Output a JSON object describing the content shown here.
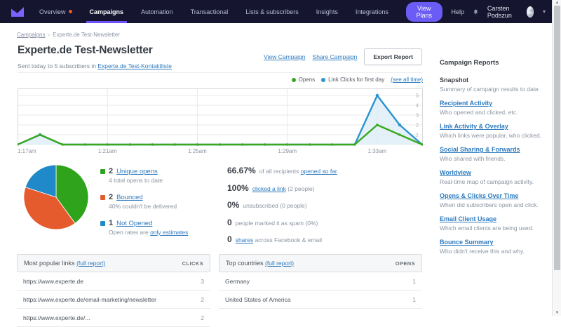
{
  "nav": {
    "items": [
      {
        "label": "Overview",
        "badge": true
      },
      {
        "label": "Campaigns",
        "active": true
      },
      {
        "label": "Automation"
      },
      {
        "label": "Transactional"
      },
      {
        "label": "Lists & subscribers"
      },
      {
        "label": "Insights"
      },
      {
        "label": "Integrations"
      }
    ],
    "view_plans": "View Plans",
    "help": "Help",
    "user": "Carsten Podszun"
  },
  "breadcrumb": {
    "parent": "Campaigns",
    "separator": "›",
    "current": "Experte.de Test-Newsletter"
  },
  "header": {
    "title": "Experte.de Test-Newsletter",
    "subtitle_prefix": "Sent today to 5 subscribers in ",
    "subtitle_link": "Experte.de Test-Kontaktliste",
    "view_campaign": "View Campaign",
    "share_campaign": "Share Campaign",
    "export_report": "Export Report"
  },
  "legend": {
    "opens": "Opens",
    "clicks": "Link Clicks for first day",
    "see_all": "(see all time)"
  },
  "chart_data": {
    "type": "line",
    "title": "Opens and link clicks for first day",
    "x_ticks": [
      "1:17am",
      "1:21am",
      "1:25am",
      "1:29am",
      "1:33am"
    ],
    "x_tick_index": [
      0,
      4,
      8,
      12,
      16
    ],
    "x_minutes": [
      "1:17am",
      "1:18am",
      "1:19am",
      "1:20am",
      "1:21am",
      "1:22am",
      "1:23am",
      "1:24am",
      "1:25am",
      "1:26am",
      "1:27am",
      "1:28am",
      "1:29am",
      "1:30am",
      "1:31am",
      "1:32am",
      "1:33am",
      "1:34am",
      "1:35am"
    ],
    "series": [
      {
        "name": "Opens",
        "color": "#3aa81f",
        "values": [
          0,
          1,
          0,
          0,
          0,
          0,
          0,
          0,
          0,
          0,
          0,
          0,
          0,
          0,
          0,
          0,
          2,
          1,
          0
        ]
      },
      {
        "name": "Link Clicks",
        "color": "#2b93d1",
        "fill": "#ddedf6",
        "values": [
          0,
          1,
          0,
          0,
          0,
          0,
          0,
          0,
          0,
          0,
          0,
          0,
          0,
          0,
          0,
          0,
          5,
          2,
          0
        ]
      }
    ],
    "ylim": [
      0,
      5.7
    ],
    "y_ticks": [
      1,
      2,
      3,
      4,
      5
    ],
    "grid": true,
    "legend_position": "top-right"
  },
  "pie": {
    "type": "pie",
    "slices": [
      {
        "value": "2",
        "label": "Unique opens",
        "pct": 40,
        "color": "#2fa31c",
        "note_pre": "4 total opens to date",
        "note_link": ""
      },
      {
        "value": "2",
        "label": "Bounced",
        "pct": 40,
        "color": "#e55b2d",
        "note_pre": "40% couldn't be delivered",
        "note_link": ""
      },
      {
        "value": "1",
        "label": "Not Opened",
        "pct": 20,
        "color": "#2089c9",
        "note_pre": "Open rates are ",
        "note_link": "only estimates"
      }
    ]
  },
  "stats": [
    {
      "value": "66.67%",
      "pre": "of all recipients ",
      "link": "opened so far",
      "post": ""
    },
    {
      "value": "100%",
      "pre": "",
      "link": "clicked a link",
      "post": " (2 people)"
    },
    {
      "value": "0%",
      "pre": "unsubscribed (0 people)",
      "link": "",
      "post": ""
    },
    {
      "value": "0",
      "pre": "people marked it as spam (0%)",
      "link": "",
      "post": ""
    },
    {
      "value": "0",
      "pre": "",
      "link": "shares",
      "post": " across Facebook & email"
    }
  ],
  "links_table": {
    "title": "Most popular links",
    "report_link": "(full report)",
    "col": "CLICKS",
    "rows": [
      {
        "label": "https://www.experte.de",
        "value": "3"
      },
      {
        "label": "https://www.experte.de/email-marketing/newsletter",
        "value": "2"
      },
      {
        "label": "https://www.experte.de/...",
        "value": "2"
      }
    ]
  },
  "countries_table": {
    "title": "Top countries",
    "report_link": "(full report)",
    "col": "OPENS",
    "rows": [
      {
        "label": "Germany",
        "value": "1"
      },
      {
        "label": "United States of America",
        "value": "1"
      }
    ]
  },
  "sidebar": {
    "heading": "Campaign Reports",
    "items": [
      {
        "title": "Snapshot",
        "desc": "Summary of campaign results to date."
      },
      {
        "title": "Recipient Activity",
        "desc": "Who opened and clicked, etc."
      },
      {
        "title": "Link Activity & Overlay",
        "desc": "Which links were popular, who clicked."
      },
      {
        "title": "Social Sharing & Forwards",
        "desc": "Who shared with friends."
      },
      {
        "title": "Worldview",
        "desc": "Real-time map of campaign activity."
      },
      {
        "title": "Opens & Clicks Over Time",
        "desc": "When did subscribers open and click."
      },
      {
        "title": "Email Client Usage",
        "desc": "Which email clients are being used."
      },
      {
        "title": "Bounce Summary",
        "desc": "Who didn't receive this and why."
      }
    ]
  },
  "colors": {
    "nav_bg": "#15152f",
    "accent_purple": "#6a5cf5",
    "link_blue": "#2e7bbe",
    "opens_green": "#3aa81f",
    "clicks_blue": "#2b93d1",
    "bounced_orange": "#e55b2d",
    "alert_orange": "#f05a28"
  }
}
